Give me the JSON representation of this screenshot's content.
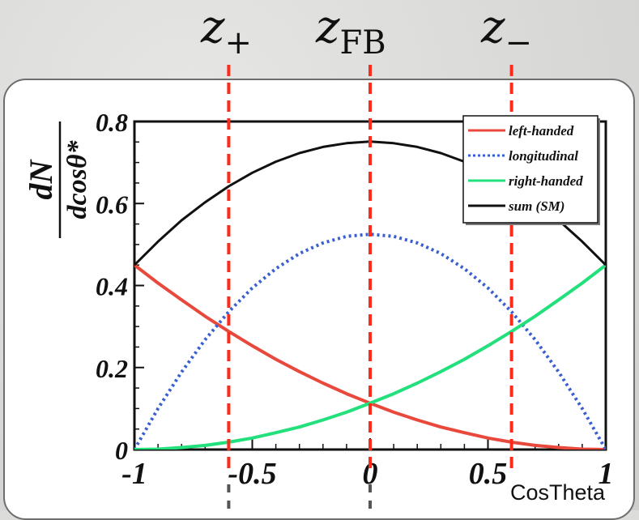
{
  "markers": [
    {
      "main": "z",
      "sub": "+",
      "x": -0.6
    },
    {
      "main": "z",
      "sub": "FB",
      "x": 0
    },
    {
      "main": "z",
      "sub": "−",
      "x": 0.6
    }
  ],
  "footer_label": "CosTheta",
  "colors": {
    "left_handed": "#e8493c",
    "longitudinal": "#3a5fd0",
    "right_handed": "#22e07c",
    "sum": "#111111",
    "marker": "#ff2a1a"
  },
  "chart_data": {
    "type": "line",
    "ylabel_num": "dN",
    "ylabel_den": "dcosθ*",
    "xlim": [
      -1,
      1
    ],
    "ylim": [
      0,
      0.8
    ],
    "x_ticks": [
      "-1",
      "-0.5",
      "0",
      "0.5",
      "1"
    ],
    "y_ticks": [
      "0",
      "0.2",
      "0.4",
      "0.6",
      "0.8"
    ],
    "legend_position": "top-right",
    "x": [
      -1,
      -0.9,
      -0.8,
      -0.7,
      -0.6,
      -0.5,
      -0.4,
      -0.3,
      -0.2,
      -0.1,
      0,
      0.1,
      0.2,
      0.3,
      0.4,
      0.5,
      0.6,
      0.7,
      0.8,
      0.9,
      1
    ],
    "series": [
      {
        "name": "left-handed",
        "style": "solid",
        "values": [
          0.45,
          0.406,
          0.365,
          0.325,
          0.288,
          0.253,
          0.22,
          0.19,
          0.162,
          0.136,
          0.113,
          0.091,
          0.072,
          0.055,
          0.041,
          0.028,
          0.018,
          0.01,
          0.005,
          0.001,
          0
        ]
      },
      {
        "name": "longitudinal",
        "style": "dotted",
        "values": [
          0,
          0.1,
          0.189,
          0.268,
          0.336,
          0.394,
          0.441,
          0.478,
          0.504,
          0.52,
          0.525,
          0.52,
          0.504,
          0.478,
          0.441,
          0.394,
          0.336,
          0.268,
          0.189,
          0.1,
          0
        ]
      },
      {
        "name": "right-handed",
        "style": "solid",
        "values": [
          0,
          0.001,
          0.005,
          0.01,
          0.018,
          0.028,
          0.041,
          0.055,
          0.072,
          0.091,
          0.113,
          0.136,
          0.162,
          0.19,
          0.22,
          0.253,
          0.288,
          0.325,
          0.365,
          0.406,
          0.45
        ]
      },
      {
        "name": "sum (SM)",
        "style": "solid",
        "values": [
          0.45,
          0.507,
          0.559,
          0.603,
          0.642,
          0.675,
          0.702,
          0.723,
          0.738,
          0.747,
          0.751,
          0.747,
          0.738,
          0.723,
          0.702,
          0.675,
          0.642,
          0.603,
          0.559,
          0.507,
          0.45
        ]
      }
    ]
  }
}
